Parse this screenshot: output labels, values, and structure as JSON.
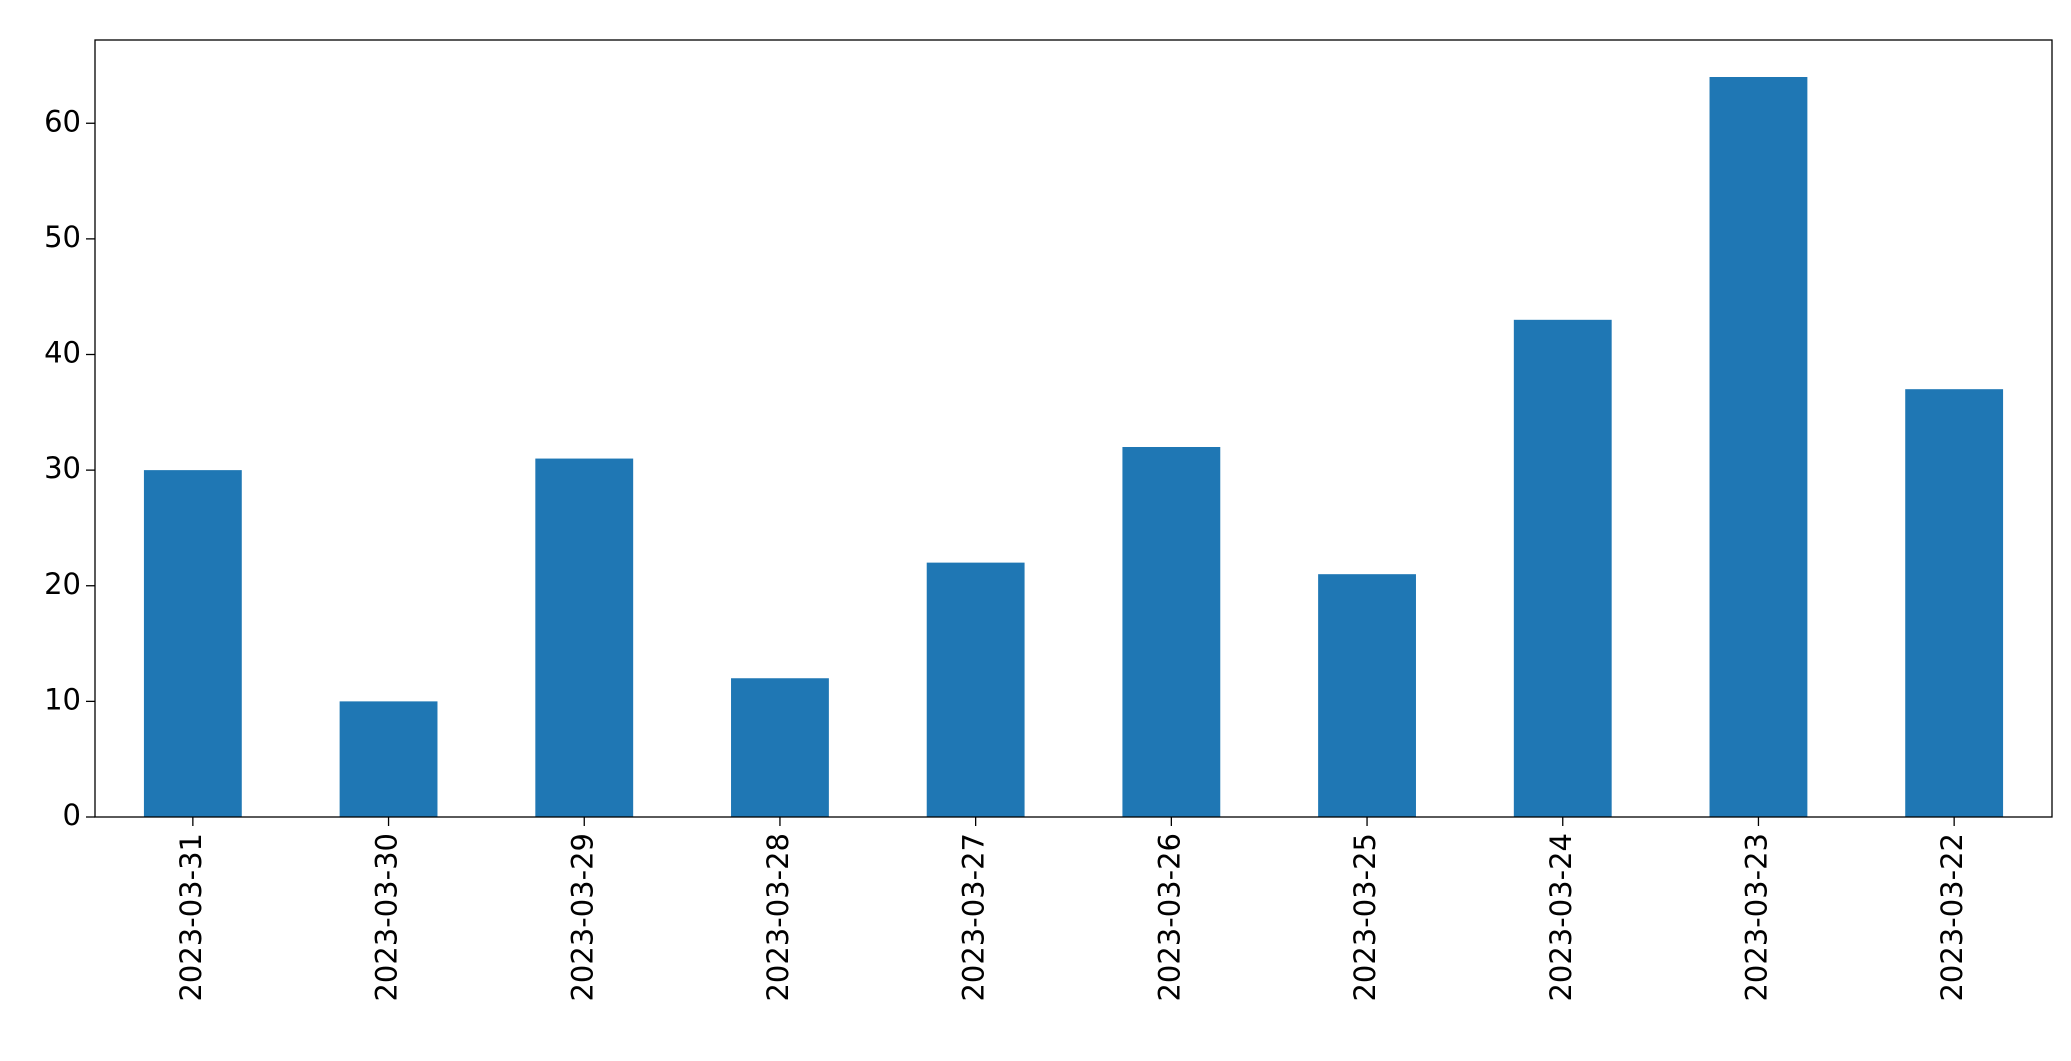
{
  "chart_data": {
    "type": "bar",
    "categories": [
      "2023-03-31",
      "2023-03-30",
      "2023-03-29",
      "2023-03-28",
      "2023-03-27",
      "2023-03-26",
      "2023-03-25",
      "2023-03-24",
      "2023-03-23",
      "2023-03-22"
    ],
    "values": [
      30,
      10,
      31,
      12,
      22,
      32,
      21,
      43,
      64,
      37
    ],
    "color": "#1f77b4",
    "ylim": [
      0,
      67.2
    ],
    "yticks": [
      0,
      10,
      20,
      30,
      40,
      50,
      60
    ],
    "grid": false
  }
}
